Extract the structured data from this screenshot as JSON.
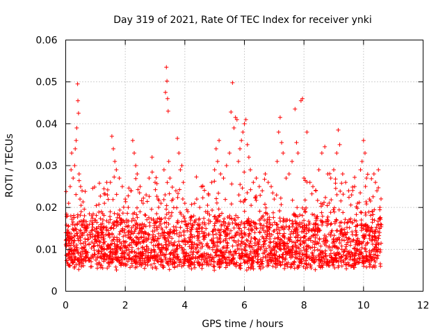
{
  "chart_data": {
    "type": "scatter",
    "title": "Day 319 of 2021, Rate Of TEC Index for receiver ynki",
    "xlabel": "GPS time / hours",
    "ylabel": "ROTI / TECUs",
    "xlim": [
      0,
      12
    ],
    "ylim": [
      0,
      0.06
    ],
    "x_ticks": [
      0,
      2,
      4,
      6,
      8,
      10,
      12
    ],
    "x_tick_labels": [
      "0",
      "2",
      "4",
      "6",
      "8",
      "10",
      "12"
    ],
    "y_ticks": [
      0,
      0.01,
      0.02,
      0.03,
      0.04,
      0.05,
      0.06
    ],
    "y_tick_labels": [
      "0",
      "0.01",
      "0.02",
      "0.03",
      "0.04",
      "0.05",
      "0.06"
    ],
    "grid": true,
    "marker": "+",
    "series_color": "#ff0000",
    "series": [
      {
        "name": "ROTI",
        "points": [
          [
            0.02,
            0.011
          ],
          [
            0.05,
            0.018
          ],
          [
            0.08,
            0.014
          ],
          [
            0.1,
            0.021
          ],
          [
            0.12,
            0.009
          ],
          [
            0.15,
            0.025
          ],
          [
            0.18,
            0.029
          ],
          [
            0.2,
            0.033
          ],
          [
            0.22,
            0.016
          ],
          [
            0.25,
            0.027
          ],
          [
            0.28,
            0.012
          ],
          [
            0.3,
            0.03
          ],
          [
            0.32,
            0.034
          ],
          [
            0.35,
            0.036
          ],
          [
            0.37,
            0.039
          ],
          [
            0.4,
            0.0495
          ],
          [
            0.41,
            0.0455
          ],
          [
            0.43,
            0.0425
          ],
          [
            0.45,
            0.028
          ],
          [
            0.48,
            0.022
          ],
          [
            0.5,
            0.025
          ],
          [
            0.52,
            0.019
          ],
          [
            0.55,
            0.024
          ],
          [
            0.6,
            0.017
          ],
          [
            0.7,
            0.015
          ],
          [
            0.8,
            0.016
          ],
          [
            0.9,
            0.013
          ],
          [
            1.0,
            0.017
          ],
          [
            1.1,
            0.014
          ],
          [
            1.2,
            0.019
          ],
          [
            1.3,
            0.021
          ],
          [
            1.4,
            0.023
          ],
          [
            1.5,
            0.026
          ],
          [
            1.55,
            0.037
          ],
          [
            1.6,
            0.034
          ],
          [
            1.65,
            0.031
          ],
          [
            1.7,
            0.029
          ],
          [
            1.8,
            0.027
          ],
          [
            1.9,
            0.025
          ],
          [
            2.0,
            0.022
          ],
          [
            2.1,
            0.02
          ],
          [
            2.2,
            0.024
          ],
          [
            2.25,
            0.036
          ],
          [
            2.3,
            0.033
          ],
          [
            2.35,
            0.03
          ],
          [
            2.4,
            0.028
          ],
          [
            2.5,
            0.025
          ],
          [
            2.6,
            0.021
          ],
          [
            2.7,
            0.023
          ],
          [
            2.8,
            0.027
          ],
          [
            2.9,
            0.032
          ],
          [
            3.0,
            0.026
          ],
          [
            3.1,
            0.022
          ],
          [
            3.2,
            0.021
          ],
          [
            3.3,
            0.029
          ],
          [
            3.35,
            0.0475
          ],
          [
            3.38,
            0.0535
          ],
          [
            3.4,
            0.0502
          ],
          [
            3.42,
            0.046
          ],
          [
            3.44,
            0.043
          ],
          [
            3.46,
            0.031
          ],
          [
            3.5,
            0.027
          ],
          [
            3.6,
            0.022
          ],
          [
            3.7,
            0.024
          ],
          [
            3.75,
            0.0365
          ],
          [
            3.8,
            0.033
          ],
          [
            3.85,
            0.029
          ],
          [
            3.9,
            0.03
          ],
          [
            3.95,
            0.026
          ],
          [
            4.0,
            0.021
          ],
          [
            4.1,
            0.019
          ],
          [
            4.2,
            0.017
          ],
          [
            4.3,
            0.018
          ],
          [
            4.4,
            0.022
          ],
          [
            4.5,
            0.02
          ],
          [
            4.6,
            0.025
          ],
          [
            4.7,
            0.019
          ],
          [
            4.8,
            0.023
          ],
          [
            4.9,
            0.026
          ],
          [
            5.0,
            0.029
          ],
          [
            5.05,
            0.034
          ],
          [
            5.1,
            0.031
          ],
          [
            5.15,
            0.036
          ],
          [
            5.2,
            0.028
          ],
          [
            5.3,
            0.027
          ],
          [
            5.4,
            0.03
          ],
          [
            5.5,
            0.033
          ],
          [
            5.55,
            0.0428
          ],
          [
            5.6,
            0.0498
          ],
          [
            5.65,
            0.039
          ],
          [
            5.7,
            0.0415
          ],
          [
            5.75,
            0.041
          ],
          [
            5.8,
            0.031
          ],
          [
            5.85,
            0.034
          ],
          [
            5.9,
            0.036
          ],
          [
            5.95,
            0.038
          ],
          [
            6.0,
            0.04
          ],
          [
            6.05,
            0.041
          ],
          [
            6.1,
            0.035
          ],
          [
            6.15,
            0.032
          ],
          [
            6.2,
            0.029
          ],
          [
            6.3,
            0.026
          ],
          [
            6.4,
            0.027
          ],
          [
            6.5,
            0.025
          ],
          [
            6.6,
            0.024
          ],
          [
            6.7,
            0.028
          ],
          [
            6.8,
            0.026
          ],
          [
            6.9,
            0.025
          ],
          [
            7.0,
            0.022
          ],
          [
            7.1,
            0.031
          ],
          [
            7.15,
            0.038
          ],
          [
            7.2,
            0.0415
          ],
          [
            7.25,
            0.0355
          ],
          [
            7.3,
            0.033
          ],
          [
            7.4,
            0.027
          ],
          [
            7.5,
            0.028
          ],
          [
            7.6,
            0.031
          ],
          [
            7.7,
            0.0435
          ],
          [
            7.75,
            0.0355
          ],
          [
            7.8,
            0.033
          ],
          [
            7.9,
            0.0455
          ],
          [
            7.95,
            0.046
          ],
          [
            8.0,
            0.027
          ],
          [
            8.1,
            0.038
          ],
          [
            8.2,
            0.026
          ],
          [
            8.3,
            0.025
          ],
          [
            8.4,
            0.024
          ],
          [
            8.5,
            0.029
          ],
          [
            8.6,
            0.033
          ],
          [
            8.7,
            0.0345
          ],
          [
            8.8,
            0.028
          ],
          [
            8.9,
            0.027
          ],
          [
            9.0,
            0.029
          ],
          [
            9.1,
            0.033
          ],
          [
            9.15,
            0.0385
          ],
          [
            9.2,
            0.035
          ],
          [
            9.3,
            0.028
          ],
          [
            9.4,
            0.026
          ],
          [
            9.5,
            0.024
          ],
          [
            9.6,
            0.023
          ],
          [
            9.7,
            0.025
          ],
          [
            9.8,
            0.021
          ],
          [
            9.9,
            0.029
          ],
          [
            9.95,
            0.031
          ],
          [
            10.0,
            0.036
          ],
          [
            10.05,
            0.033
          ],
          [
            10.1,
            0.027
          ],
          [
            10.2,
            0.022
          ],
          [
            10.3,
            0.019
          ],
          [
            10.35,
            0.028
          ],
          [
            10.4,
            0.026
          ],
          [
            10.45,
            0.024
          ],
          [
            10.5,
            0.029
          ],
          [
            10.55,
            0.02
          ]
        ],
        "background_cloud": {
          "x_range": [
            0.0,
            10.6
          ],
          "band_low": 0.005,
          "band_high": 0.016,
          "count": 2600
        }
      }
    ]
  }
}
